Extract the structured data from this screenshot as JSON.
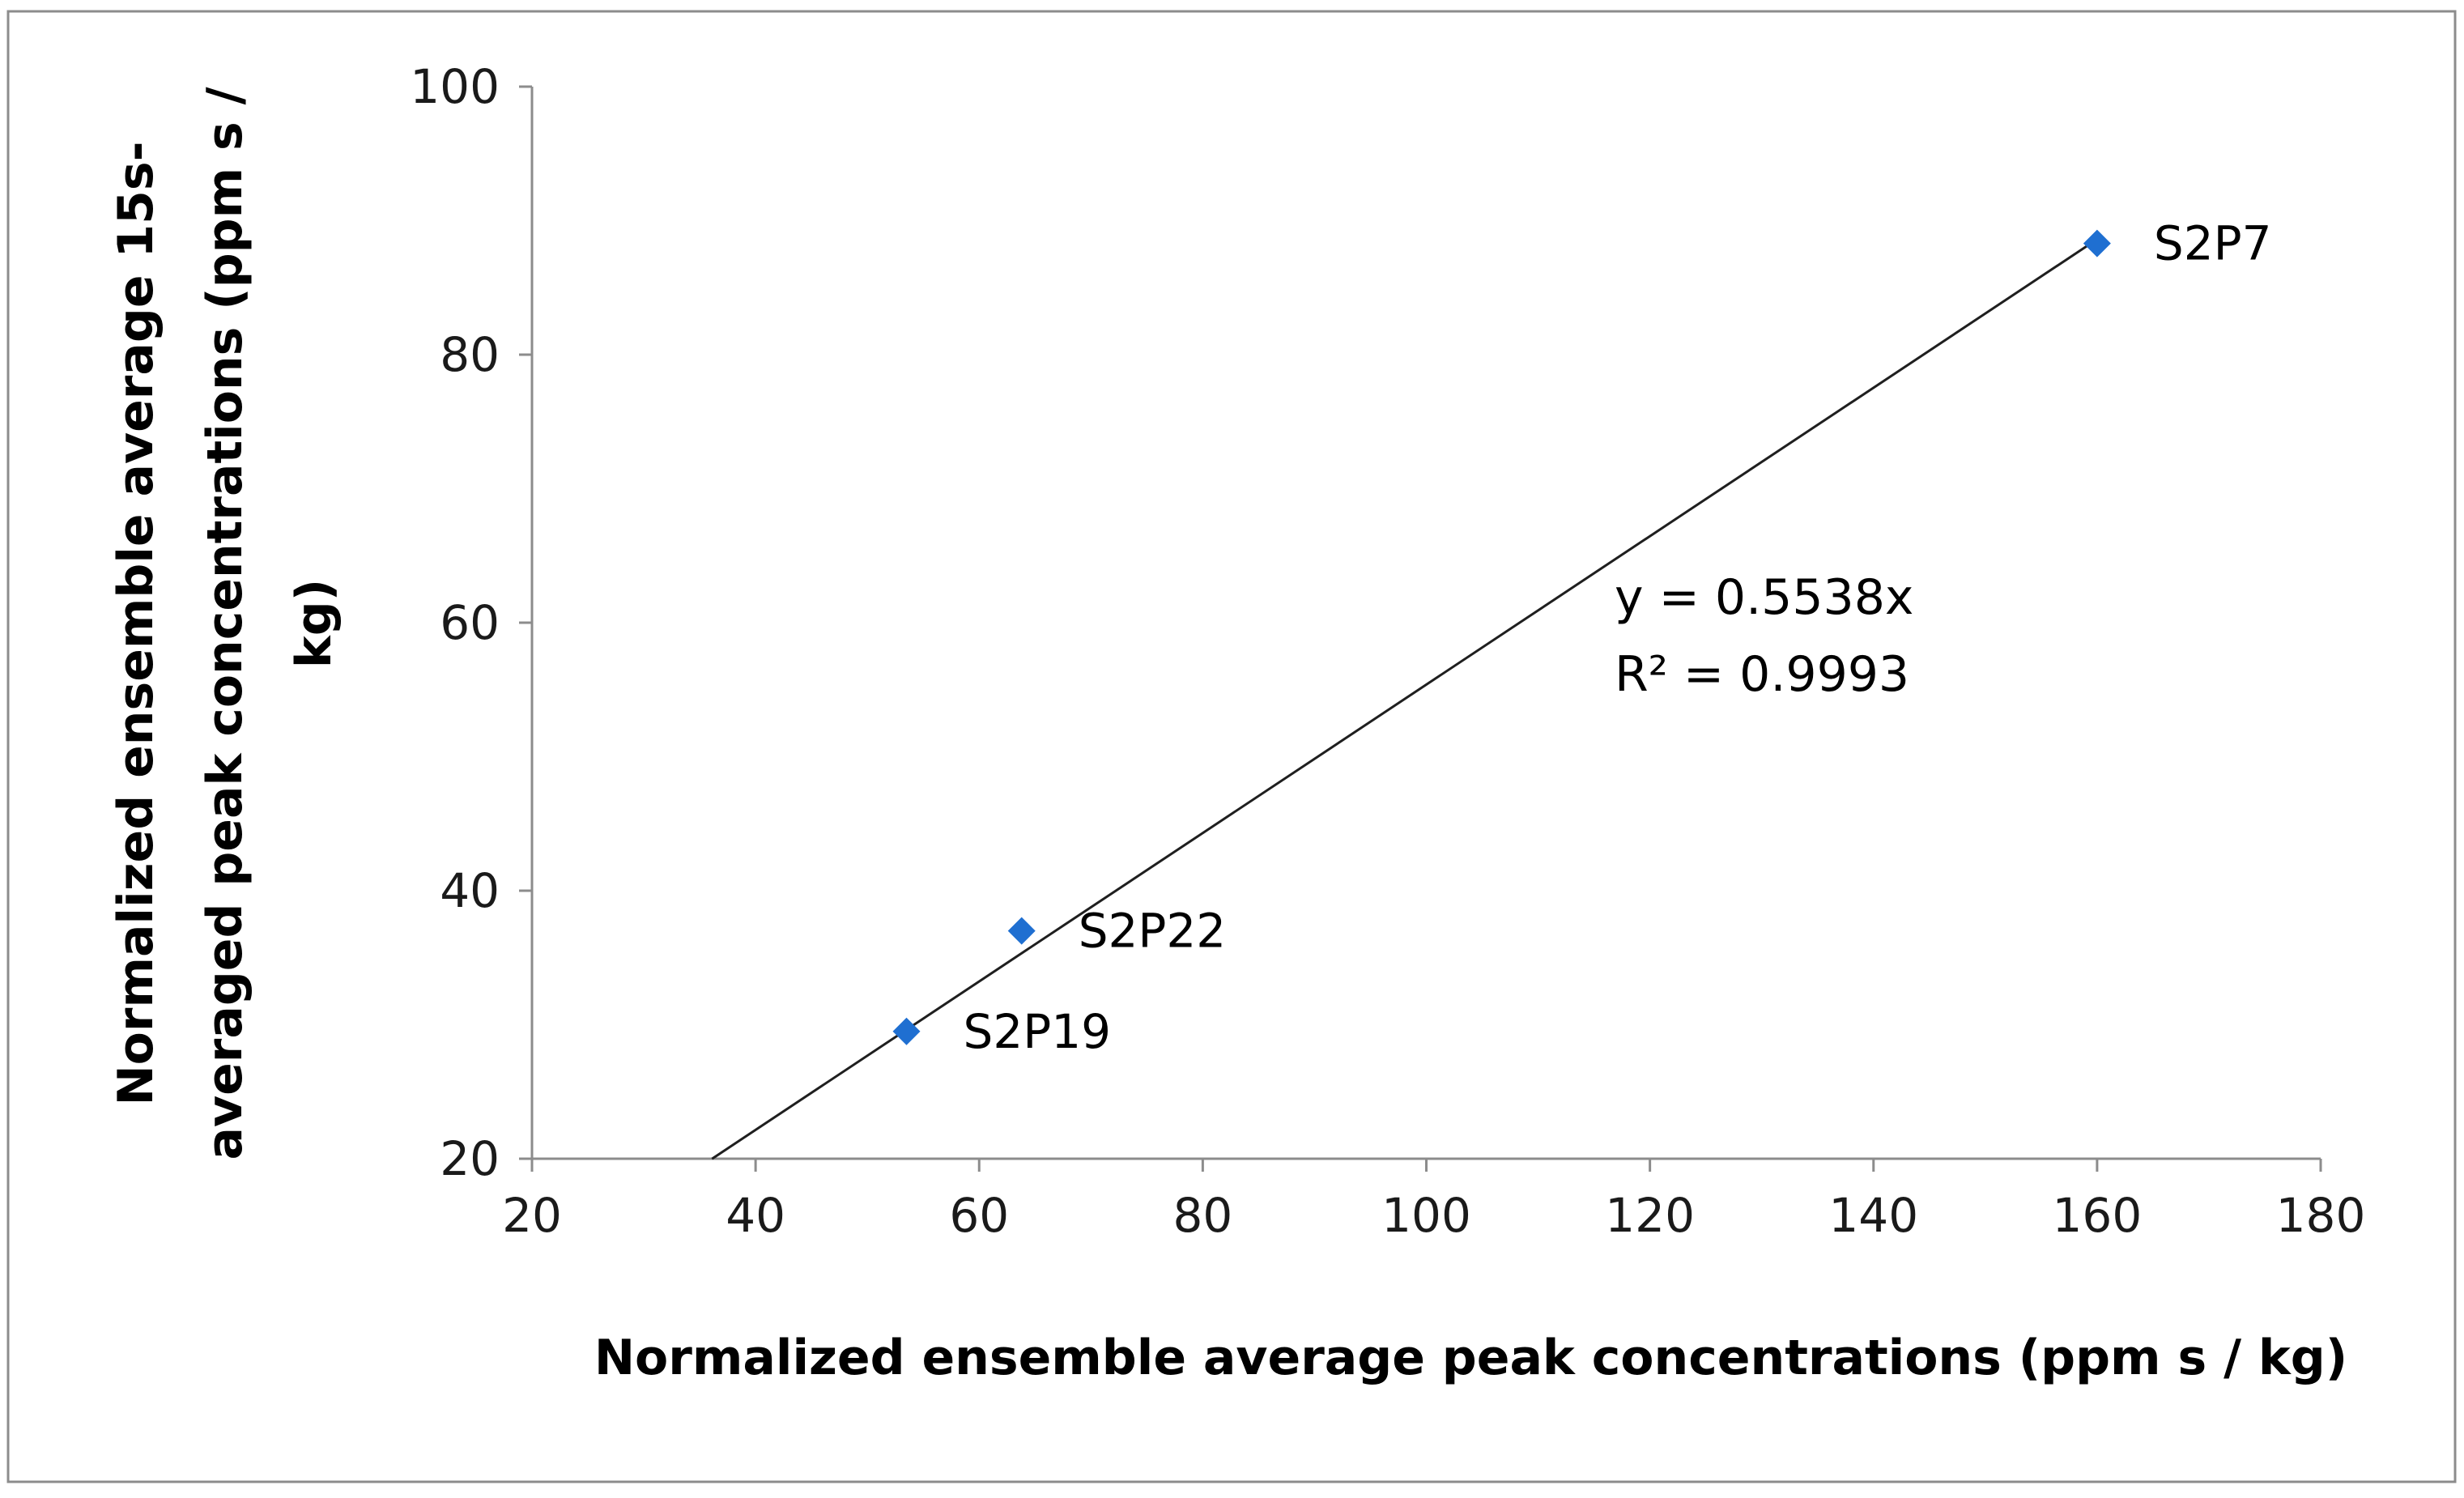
{
  "chart_data": {
    "type": "scatter",
    "xlabel": "Normalized ensemble average peak concentrations (ppm s / kg)",
    "ylabel_lines": [
      "Normalized ensemble average 15s-",
      "averaged peak concentrations (ppm s /",
      "kg)"
    ],
    "xlim": [
      20,
      180
    ],
    "ylim": [
      20,
      100
    ],
    "x_ticks": [
      20,
      40,
      60,
      80,
      100,
      120,
      140,
      160,
      180
    ],
    "y_ticks": [
      20,
      40,
      60,
      80,
      100
    ],
    "grid": false,
    "marker": "diamond",
    "point_color": "#1f6fd1",
    "series": [
      {
        "points": [
          {
            "x": 53.5,
            "y": 29.5,
            "label": "S2P19"
          },
          {
            "x": 63.8,
            "y": 37.0,
            "label": "S2P22"
          },
          {
            "x": 160.0,
            "y": 88.3,
            "label": "S2P7"
          }
        ]
      }
    ],
    "trendline": {
      "slope": 0.5538,
      "x_range": [
        36.1,
        160.0
      ],
      "equation_text": "y = 0.5538x",
      "r2_text": "R² = 0.9993"
    }
  }
}
